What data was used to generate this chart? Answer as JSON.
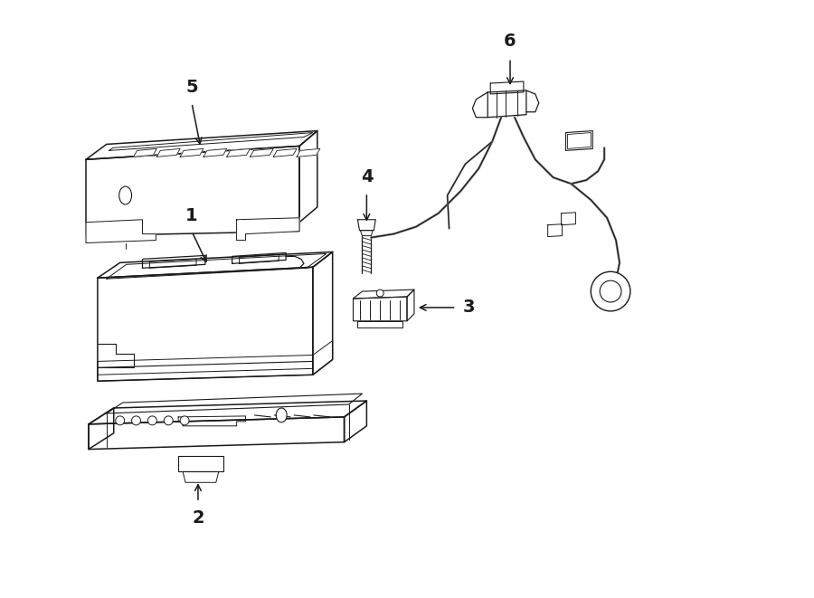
{
  "bg_color": "#ffffff",
  "line_color": "#1a1a1a",
  "lw": 1.1,
  "fig_width": 9.0,
  "fig_height": 6.61,
  "dpi": 100
}
